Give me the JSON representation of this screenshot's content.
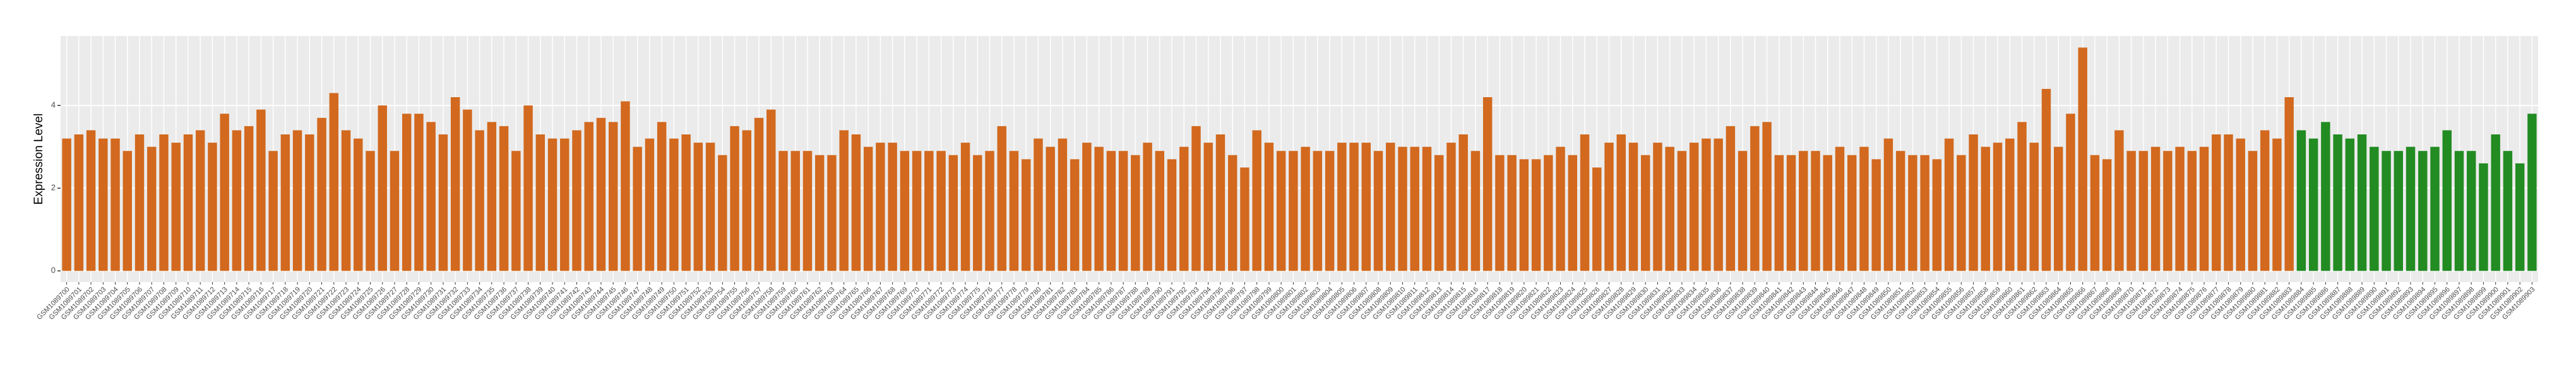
{
  "chart_data": {
    "type": "bar",
    "y_label": "Expression Level",
    "ylim": [
      -0.27,
      5.68
    ],
    "yticks": [
      0,
      2,
      4
    ],
    "grid": true,
    "categories": [
      "GSM1089700",
      "GSM1089701",
      "GSM1089702",
      "GSM1089703",
      "GSM1089704",
      "GSM1089705",
      "GSM1089706",
      "GSM1089707",
      "GSM1089708",
      "GSM1089709",
      "GSM1089710",
      "GSM1089711",
      "GSM1089712",
      "GSM1089713",
      "GSM1089714",
      "GSM1089715",
      "GSM1089716",
      "GSM1089717",
      "GSM1089718",
      "GSM1089719",
      "GSM1089720",
      "GSM1089721",
      "GSM1089722",
      "GSM1089723",
      "GSM1089724",
      "GSM1089725",
      "GSM1089726",
      "GSM1089727",
      "GSM1089728",
      "GSM1089729",
      "GSM1089730",
      "GSM1089731",
      "GSM1089732",
      "GSM1089733",
      "GSM1089734",
      "GSM1089735",
      "GSM1089736",
      "GSM1089737",
      "GSM1089738",
      "GSM1089739",
      "GSM1089740",
      "GSM1089741",
      "GSM1089742",
      "GSM1089743",
      "GSM1089744",
      "GSM1089745",
      "GSM1089746",
      "GSM1089747",
      "GSM1089748",
      "GSM1089749",
      "GSM1089750",
      "GSM1089751",
      "GSM1089752",
      "GSM1089753",
      "GSM1089754",
      "GSM1089755",
      "GSM1089756",
      "GSM1089757",
      "GSM1089758",
      "GSM1089759",
      "GSM1089760",
      "GSM1089761",
      "GSM1089762",
      "GSM1089763",
      "GSM1089764",
      "GSM1089765",
      "GSM1089766",
      "GSM1089767",
      "GSM1089768",
      "GSM1089769",
      "GSM1089770",
      "GSM1089771",
      "GSM1089772",
      "GSM1089773",
      "GSM1089774",
      "GSM1089775",
      "GSM1089776",
      "GSM1089777",
      "GSM1089778",
      "GSM1089779",
      "GSM1089780",
      "GSM1089781",
      "GSM1089782",
      "GSM1089783",
      "GSM1089784",
      "GSM1089785",
      "GSM1089786",
      "GSM1089787",
      "GSM1089788",
      "GSM1089789",
      "GSM1089790",
      "GSM1089791",
      "GSM1089792",
      "GSM1089793",
      "GSM1089794",
      "GSM1089795",
      "GSM1089796",
      "GSM1089797",
      "GSM1089798",
      "GSM1089799",
      "GSM1089800",
      "GSM1089801",
      "GSM1089802",
      "GSM1089803",
      "GSM1089804",
      "GSM1089805",
      "GSM1089806",
      "GSM1089807",
      "GSM1089808",
      "GSM1089809",
      "GSM1089810",
      "GSM1089811",
      "GSM1089812",
      "GSM1089813",
      "GSM1089814",
      "GSM1089815",
      "GSM1089816",
      "GSM1089817",
      "GSM1089818",
      "GSM1089819",
      "GSM1089820",
      "GSM1089821",
      "GSM1089822",
      "GSM1089823",
      "GSM1089824",
      "GSM1089825",
      "GSM1089826",
      "GSM1089827",
      "GSM1089828",
      "GSM1089829",
      "GSM1089830",
      "GSM1089831",
      "GSM1089832",
      "GSM1089833",
      "GSM1089834",
      "GSM1089835",
      "GSM1089836",
      "GSM1089837",
      "GSM1089838",
      "GSM1089839",
      "GSM1089840",
      "GSM1089841",
      "GSM1089842",
      "GSM1089843",
      "GSM1089844",
      "GSM1089845",
      "GSM1089846",
      "GSM1089847",
      "GSM1089848",
      "GSM1089849",
      "GSM1089850",
      "GSM1089851",
      "GSM1089852",
      "GSM1089853",
      "GSM1089854",
      "GSM1089855",
      "GSM1089856",
      "GSM1089857",
      "GSM1089858",
      "GSM1089859",
      "GSM1089860",
      "GSM1089861",
      "GSM1089862",
      "GSM1089863",
      "GSM1089864",
      "GSM1089865",
      "GSM1089866",
      "GSM1089867",
      "GSM1089868",
      "GSM1089869",
      "GSM1089870",
      "GSM1089871",
      "GSM1089872",
      "GSM1089873",
      "GSM1089874",
      "GSM1089875",
      "GSM1089876",
      "GSM1089877",
      "GSM1089878",
      "GSM1089879",
      "GSM1089880",
      "GSM1089881",
      "GSM1089882",
      "GSM1089883",
      "GSM1089884",
      "GSM1089885",
      "GSM1089886",
      "GSM1089887",
      "GSM1089888",
      "GSM1089889",
      "GSM1089890",
      "GSM1089891",
      "GSM1089892",
      "GSM1089893",
      "GSM1089894",
      "GSM1089895",
      "GSM1089896",
      "GSM1089897",
      "GSM1089898",
      "GSM1089899",
      "GSM1089900",
      "GSM1089901",
      "GSM1089902",
      "GSM1089903"
    ],
    "values": [
      3.2,
      3.3,
      3.4,
      3.2,
      3.2,
      2.9,
      3.3,
      3.0,
      3.3,
      3.1,
      3.3,
      3.4,
      3.1,
      3.8,
      3.4,
      3.5,
      3.9,
      2.9,
      3.3,
      3.4,
      3.3,
      3.7,
      4.3,
      3.4,
      3.2,
      2.9,
      4.0,
      2.9,
      3.8,
      3.8,
      3.6,
      3.3,
      4.2,
      3.9,
      3.4,
      3.6,
      3.5,
      2.9,
      4.0,
      3.3,
      3.2,
      3.2,
      3.4,
      3.6,
      3.7,
      3.6,
      4.1,
      3.0,
      3.2,
      3.6,
      3.2,
      3.3,
      3.1,
      3.1,
      2.8,
      3.5,
      3.4,
      3.7,
      3.9,
      2.9,
      2.9,
      2.9,
      2.8,
      2.8,
      3.4,
      3.3,
      3.0,
      3.1,
      3.1,
      2.9,
      2.9,
      2.9,
      2.9,
      2.8,
      3.1,
      2.8,
      2.9,
      3.5,
      2.9,
      2.7,
      3.2,
      3.0,
      3.2,
      2.7,
      3.1,
      3.0,
      2.9,
      2.9,
      2.8,
      3.1,
      2.9,
      2.7,
      3.0,
      3.5,
      3.1,
      3.3,
      2.8,
      2.5,
      3.4,
      3.1,
      2.9,
      2.9,
      3.0,
      2.9,
      2.9,
      3.1,
      3.1,
      3.1,
      2.9,
      3.1,
      3.0,
      3.0,
      3.0,
      2.8,
      3.1,
      3.3,
      2.9,
      4.2,
      2.8,
      2.8,
      2.7,
      2.7,
      2.8,
      3.0,
      2.8,
      3.3,
      2.5,
      3.1,
      3.3,
      3.1,
      2.8,
      3.1,
      3.0,
      2.9,
      3.1,
      3.2,
      3.2,
      3.5,
      2.9,
      3.5,
      3.6,
      2.8,
      2.8,
      2.9,
      2.9,
      2.8,
      3.0,
      2.8,
      3.0,
      2.7,
      3.2,
      2.9,
      2.8,
      2.8,
      2.7,
      3.2,
      2.8,
      3.3,
      3.0,
      3.1,
      3.2,
      3.6,
      3.1,
      4.4,
      3.0,
      3.8,
      5.4,
      2.8,
      2.7,
      3.4,
      2.9,
      2.9,
      3.0,
      2.9,
      3.0,
      2.9,
      3.0,
      3.3,
      3.3,
      3.2,
      2.9,
      3.4,
      3.2,
      4.2,
      3.4,
      3.2,
      3.6,
      3.3,
      3.2,
      3.3,
      3.0,
      2.9,
      2.9,
      3.0,
      2.9,
      3.0,
      3.4,
      2.9,
      2.9,
      2.6,
      3.3,
      2.9,
      2.6,
      3.8
    ],
    "colors": [
      "#d2691e",
      "#d2691e",
      "#d2691e",
      "#d2691e",
      "#d2691e",
      "#d2691e",
      "#d2691e",
      "#d2691e",
      "#d2691e",
      "#d2691e",
      "#d2691e",
      "#d2691e",
      "#d2691e",
      "#d2691e",
      "#d2691e",
      "#d2691e",
      "#d2691e",
      "#d2691e",
      "#d2691e",
      "#d2691e",
      "#d2691e",
      "#d2691e",
      "#d2691e",
      "#d2691e",
      "#d2691e",
      "#d2691e",
      "#d2691e",
      "#d2691e",
      "#d2691e",
      "#d2691e",
      "#d2691e",
      "#d2691e",
      "#d2691e",
      "#d2691e",
      "#d2691e",
      "#d2691e",
      "#d2691e",
      "#d2691e",
      "#d2691e",
      "#d2691e",
      "#d2691e",
      "#d2691e",
      "#d2691e",
      "#d2691e",
      "#d2691e",
      "#d2691e",
      "#d2691e",
      "#d2691e",
      "#d2691e",
      "#d2691e",
      "#d2691e",
      "#d2691e",
      "#d2691e",
      "#d2691e",
      "#d2691e",
      "#d2691e",
      "#d2691e",
      "#d2691e",
      "#d2691e",
      "#d2691e",
      "#d2691e",
      "#d2691e",
      "#d2691e",
      "#d2691e",
      "#d2691e",
      "#d2691e",
      "#d2691e",
      "#d2691e",
      "#d2691e",
      "#d2691e",
      "#d2691e",
      "#d2691e",
      "#d2691e",
      "#d2691e",
      "#d2691e",
      "#d2691e",
      "#d2691e",
      "#d2691e",
      "#d2691e",
      "#d2691e",
      "#d2691e",
      "#d2691e",
      "#d2691e",
      "#d2691e",
      "#d2691e",
      "#d2691e",
      "#d2691e",
      "#d2691e",
      "#d2691e",
      "#d2691e",
      "#d2691e",
      "#d2691e",
      "#d2691e",
      "#d2691e",
      "#d2691e",
      "#d2691e",
      "#d2691e",
      "#d2691e",
      "#d2691e",
      "#d2691e",
      "#d2691e",
      "#d2691e",
      "#d2691e",
      "#d2691e",
      "#d2691e",
      "#d2691e",
      "#d2691e",
      "#d2691e",
      "#d2691e",
      "#d2691e",
      "#d2691e",
      "#d2691e",
      "#d2691e",
      "#d2691e",
      "#d2691e",
      "#d2691e",
      "#d2691e",
      "#d2691e",
      "#d2691e",
      "#d2691e",
      "#d2691e",
      "#d2691e",
      "#d2691e",
      "#d2691e",
      "#d2691e",
      "#d2691e",
      "#d2691e",
      "#d2691e",
      "#d2691e",
      "#d2691e",
      "#d2691e",
      "#d2691e",
      "#d2691e",
      "#d2691e",
      "#d2691e",
      "#d2691e",
      "#d2691e",
      "#d2691e",
      "#d2691e",
      "#d2691e",
      "#d2691e",
      "#d2691e",
      "#d2691e",
      "#d2691e",
      "#d2691e",
      "#d2691e",
      "#d2691e",
      "#d2691e",
      "#d2691e",
      "#d2691e",
      "#d2691e",
      "#d2691e",
      "#d2691e",
      "#d2691e",
      "#d2691e",
      "#d2691e",
      "#d2691e",
      "#d2691e",
      "#d2691e",
      "#d2691e",
      "#d2691e",
      "#d2691e",
      "#d2691e",
      "#d2691e",
      "#d2691e",
      "#d2691e",
      "#d2691e",
      "#d2691e",
      "#d2691e",
      "#d2691e",
      "#d2691e",
      "#d2691e",
      "#d2691e",
      "#d2691e",
      "#d2691e",
      "#d2691e",
      "#d2691e",
      "#d2691e",
      "#d2691e",
      "#d2691e",
      "#d2691e",
      "#d2691e",
      "#d2691e",
      "#d2691e",
      "#228b22",
      "#228b22",
      "#228b22",
      "#228b22",
      "#228b22",
      "#228b22",
      "#228b22",
      "#228b22",
      "#228b22",
      "#228b22",
      "#228b22",
      "#228b22",
      "#228b22",
      "#228b22",
      "#228b22",
      "#228b22",
      "#228b22",
      "#228b22",
      "#228b22",
      "#228b22"
    ]
  }
}
